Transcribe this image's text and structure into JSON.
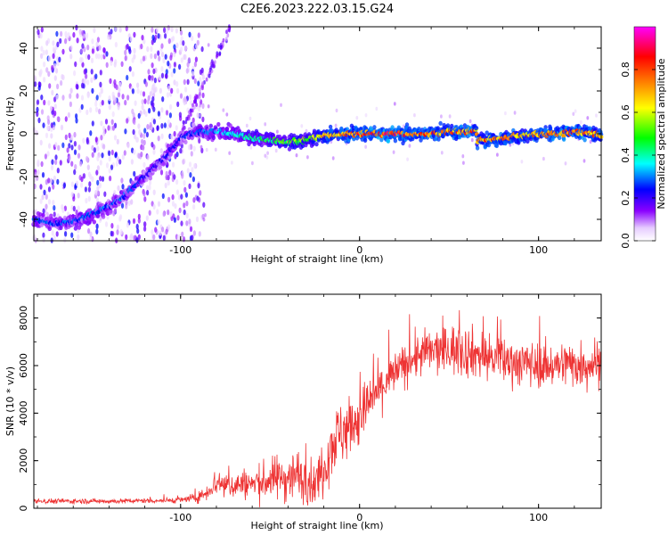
{
  "title": "C2E6.2023.222.03.15.G24",
  "chart_data": [
    {
      "type": "heatmap",
      "xlabel": "Height of straight line (km)",
      "ylabel": "Frequency (Hz)",
      "xlim": [
        -182,
        135
      ],
      "ylim": [
        -50,
        50
      ],
      "xticks": [
        -100,
        0,
        100
      ],
      "yticks": [
        -40,
        -20,
        0,
        20,
        40
      ],
      "xtick_labels": [
        "-100",
        "0",
        "100"
      ],
      "ytick_labels": [
        "-40",
        "-20",
        "0",
        "20",
        "40"
      ],
      "colorbar": {
        "label": "Normalized spectral amplitude",
        "range": [
          0,
          1
        ],
        "ticks": [
          0.0,
          0.2,
          0.4,
          0.6,
          0.8
        ],
        "tick_labels": [
          "0.0",
          "0.2",
          "0.4",
          "0.6",
          "0.8"
        ],
        "colormap": [
          "#ffffff",
          "#e8d0ff",
          "#8a00ff",
          "#0000ff",
          "#00ffff",
          "#00ff00",
          "#ffff00",
          "#ff8000",
          "#ff0000",
          "#ff00ff"
        ]
      },
      "ridge": {
        "x": [
          -182,
          -170,
          -160,
          -150,
          -140,
          -130,
          -120,
          -110,
          -100,
          -90,
          -80,
          -70,
          -60,
          -50,
          -40,
          -30,
          -20,
          -10,
          0,
          10,
          20,
          30,
          40,
          50,
          60,
          65,
          66,
          70,
          80,
          90,
          100,
          110,
          120,
          130,
          135
        ],
        "y": [
          -40,
          -42,
          -41,
          -38,
          -34,
          -28,
          -20,
          -12,
          -2,
          1,
          1,
          0,
          -2,
          -3,
          -4,
          -3,
          -1,
          0,
          0,
          0,
          0,
          0,
          0,
          1,
          1,
          2,
          -3,
          -3,
          -2,
          -1,
          0,
          0,
          1,
          0,
          -1
        ],
        "amplitude": [
          0.3,
          0.3,
          0.3,
          0.3,
          0.3,
          0.3,
          0.25,
          0.25,
          0.25,
          0.3,
          0.35,
          0.4,
          0.45,
          0.5,
          0.55,
          0.6,
          0.75,
          0.8,
          0.85,
          0.9,
          0.9,
          0.85,
          0.85,
          0.8,
          0.85,
          0.8,
          0.75,
          0.8,
          0.8,
          0.75,
          0.8,
          0.85,
          0.85,
          0.8,
          0.8
        ]
      }
    },
    {
      "type": "line",
      "xlabel": "Height of straight line (km)",
      "ylabel": "SNR (10 * v/v)",
      "xlim": [
        -182,
        135
      ],
      "ylim": [
        0,
        9000
      ],
      "xticks": [
        -100,
        0,
        100
      ],
      "yticks": [
        0,
        2000,
        4000,
        6000,
        8000
      ],
      "xtick_labels": [
        "-100",
        "0",
        "100"
      ],
      "ytick_labels": [
        "0",
        "2000",
        "4000",
        "6000",
        "8000"
      ],
      "color": "#ee3333",
      "series": [
        {
          "name": "SNR",
          "x": [
            -182,
            -170,
            -160,
            -150,
            -140,
            -130,
            -120,
            -110,
            -100,
            -90,
            -85,
            -80,
            -75,
            -70,
            -65,
            -60,
            -55,
            -50,
            -45,
            -40,
            -35,
            -30,
            -25,
            -20,
            -15,
            -10,
            -5,
            0,
            5,
            10,
            15,
            20,
            25,
            30,
            35,
            40,
            45,
            50,
            55,
            60,
            65,
            70,
            75,
            80,
            85,
            90,
            95,
            100,
            105,
            110,
            115,
            120,
            125,
            130,
            135
          ],
          "mean": [
            300,
            300,
            300,
            300,
            300,
            300,
            320,
            320,
            350,
            450,
            700,
            1100,
            1000,
            950,
            1050,
            1000,
            1100,
            1200,
            1300,
            1300,
            1400,
            1200,
            1000,
            1800,
            2800,
            3200,
            3500,
            3800,
            4400,
            4900,
            5300,
            5700,
            6000,
            6300,
            6500,
            6600,
            6600,
            6700,
            6700,
            6600,
            6500,
            6400,
            6300,
            6200,
            6200,
            6100,
            6100,
            6000,
            6000,
            6000,
            6100,
            6100,
            6000,
            6100,
            6200
          ],
          "spread": [
            150,
            150,
            150,
            150,
            150,
            150,
            150,
            150,
            200,
            300,
            500,
            900,
            900,
            800,
            900,
            1000,
            1100,
            1200,
            1400,
            1500,
            1600,
            1400,
            1200,
            1800,
            2000,
            2000,
            1900,
            1800,
            1600,
            1500,
            1400,
            1300,
            1300,
            1300,
            1400,
            1400,
            1500,
            1500,
            1600,
            1600,
            1500,
            1500,
            1400,
            1400,
            1400,
            1400,
            1400,
            1300,
            1300,
            1300,
            1400,
            1400,
            1500,
            1500,
            1500
          ]
        }
      ]
    }
  ]
}
